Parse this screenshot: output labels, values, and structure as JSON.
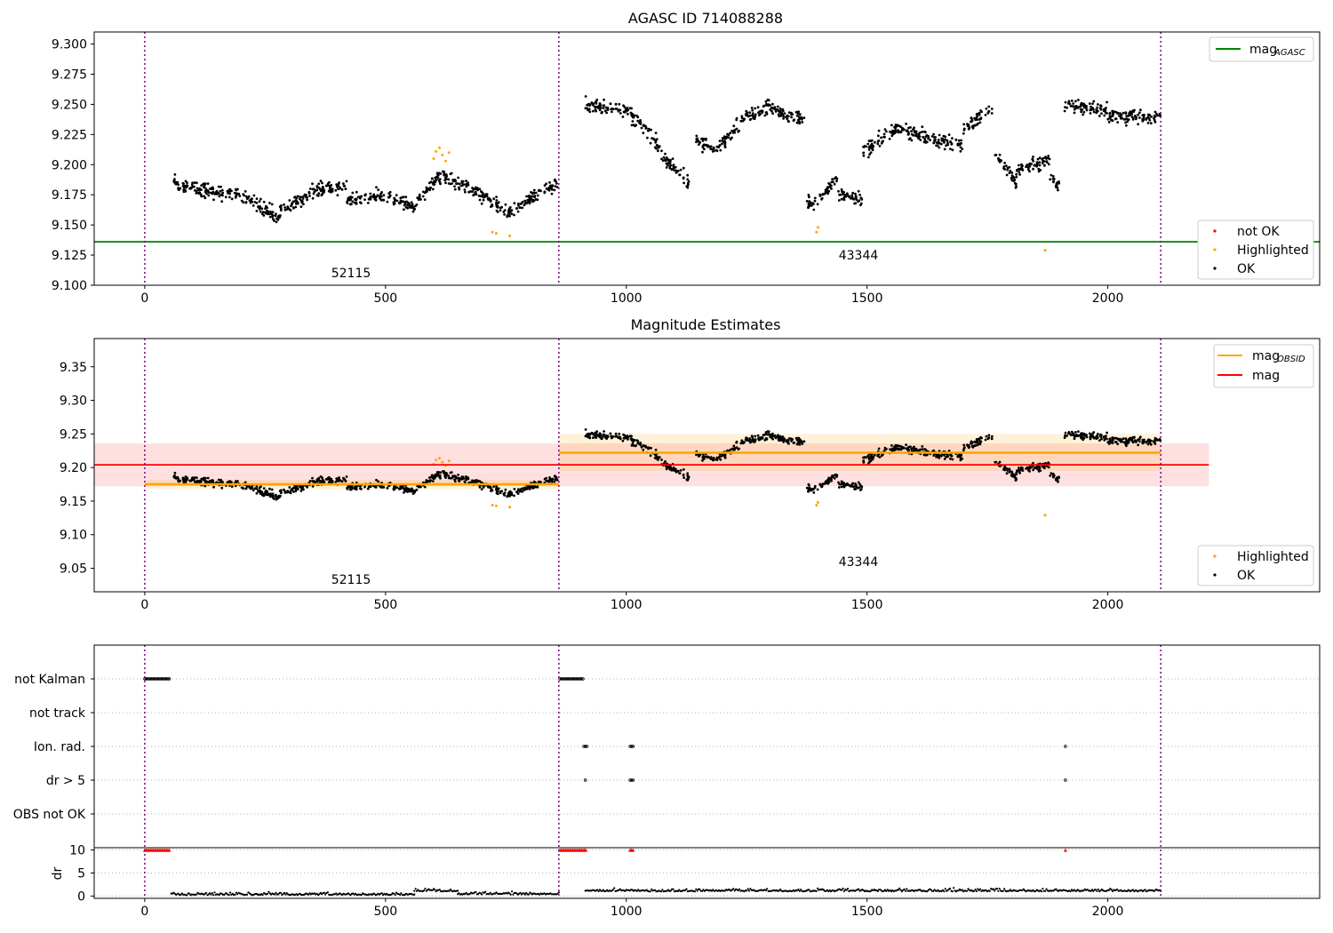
{
  "chart_data": [
    {
      "type": "scatter",
      "title": "AGASC ID 714088288",
      "xlabel": "",
      "ylabel": "",
      "xlim": [
        -105,
        2440
      ],
      "ylim": [
        9.1,
        9.31
      ],
      "xticks": [
        0,
        500,
        1000,
        1500,
        2000
      ],
      "yticks": [
        9.1,
        9.125,
        9.15,
        9.175,
        9.2,
        9.225,
        9.25,
        9.275,
        9.3
      ],
      "grid": false,
      "vlines": [
        0,
        860,
        2110
      ],
      "hlines": [
        {
          "name": "mag_AGASC",
          "y": 9.136,
          "color": "#008000"
        }
      ],
      "annotations": [
        {
          "text": "52115",
          "x": 430,
          "y": 9.11
        },
        {
          "text": "43344",
          "x": 1480,
          "y": 9.125
        }
      ],
      "legends": [
        {
          "loc": "upper right",
          "entries": [
            {
              "label": "mag",
              "sub": "AGASC",
              "color": "#008000",
              "kind": "line"
            }
          ]
        },
        {
          "loc": "lower right",
          "entries": [
            {
              "label": "not OK",
              "color": "#ff0000",
              "kind": "dot"
            },
            {
              "label": "Highlighted",
              "color": "#ffa500",
              "kind": "dot"
            },
            {
              "label": "OK",
              "color": "#000000",
              "kind": "dot"
            }
          ]
        }
      ],
      "series": [
        {
          "name": "OK",
          "color": "#000000",
          "segments": [
            {
              "x": [
                60,
                110
              ],
              "y": [
                9.184,
                9.18
              ]
            },
            {
              "x": [
                110,
                200
              ],
              "y": [
                9.18,
                9.175
              ]
            },
            {
              "x": [
                200,
                270
              ],
              "y": [
                9.175,
                9.158
              ]
            },
            {
              "x": [
                270,
                360
              ],
              "y": [
                9.158,
                9.18
              ]
            },
            {
              "x": [
                360,
                420
              ],
              "y": [
                9.18,
                9.182
              ]
            },
            {
              "x": [
                420,
                500
              ],
              "y": [
                9.17,
                9.175
              ]
            },
            {
              "x": [
                500,
                560
              ],
              "y": [
                9.175,
                9.165
              ]
            },
            {
              "x": [
                560,
                610
              ],
              "y": [
                9.165,
                9.19
              ]
            },
            {
              "x": [
                610,
                650
              ],
              "y": [
                9.19,
                9.185
              ]
            },
            {
              "x": [
                650,
                700
              ],
              "y": [
                9.185,
                9.175
              ]
            },
            {
              "x": [
                700,
                760
              ],
              "y": [
                9.175,
                9.16
              ]
            },
            {
              "x": [
                760,
                800
              ],
              "y": [
                9.16,
                9.172
              ]
            },
            {
              "x": [
                800,
                860
              ],
              "y": [
                9.172,
                9.185
              ]
            },
            {
              "x": [
                915,
                1000
              ],
              "y": [
                9.25,
                9.245
              ]
            },
            {
              "x": [
                1000,
                1050
              ],
              "y": [
                9.245,
                9.225
              ]
            },
            {
              "x": [
                1050,
                1090
              ],
              "y": [
                9.225,
                9.2
              ]
            },
            {
              "x": [
                1090,
                1130
              ],
              "y": [
                9.2,
                9.185
              ]
            },
            {
              "x": [
                1145,
                1190
              ],
              "y": [
                9.22,
                9.212
              ]
            },
            {
              "x": [
                1190,
                1250
              ],
              "y": [
                9.215,
                9.24
              ]
            },
            {
              "x": [
                1250,
                1300
              ],
              "y": [
                9.24,
                9.25
              ]
            },
            {
              "x": [
                1300,
                1370
              ],
              "y": [
                9.245,
                9.238
              ]
            },
            {
              "x": [
                1375,
                1400
              ],
              "y": [
                9.17,
                9.165
              ]
            },
            {
              "x": [
                1400,
                1440
              ],
              "y": [
                9.17,
                9.19
              ]
            },
            {
              "x": [
                1440,
                1490
              ],
              "y": [
                9.175,
                9.17
              ]
            },
            {
              "x": [
                1490,
                1560
              ],
              "y": [
                9.21,
                9.23
              ]
            },
            {
              "x": [
                1560,
                1640
              ],
              "y": [
                9.23,
                9.22
              ]
            },
            {
              "x": [
                1640,
                1700
              ],
              "y": [
                9.22,
                9.218
              ]
            },
            {
              "x": [
                1700,
                1760
              ],
              "y": [
                9.23,
                9.245
              ]
            },
            {
              "x": [
                1765,
                1810
              ],
              "y": [
                9.21,
                9.185
              ]
            },
            {
              "x": [
                1810,
                1880
              ],
              "y": [
                9.195,
                9.205
              ]
            },
            {
              "x": [
                1880,
                1900
              ],
              "y": [
                9.19,
                9.18
              ]
            },
            {
              "x": [
                1910,
                2000
              ],
              "y": [
                9.25,
                9.245
              ]
            },
            {
              "x": [
                2000,
                2110
              ],
              "y": [
                9.24,
                9.24
              ]
            }
          ]
        },
        {
          "name": "Highlighted",
          "color": "#ffa500",
          "points": [
            {
              "x": 600,
              "y": 9.205
            },
            {
              "x": 605,
              "y": 9.211
            },
            {
              "x": 612,
              "y": 9.214
            },
            {
              "x": 618,
              "y": 9.208
            },
            {
              "x": 625,
              "y": 9.203
            },
            {
              "x": 632,
              "y": 9.21
            },
            {
              "x": 722,
              "y": 9.144
            },
            {
              "x": 730,
              "y": 9.143
            },
            {
              "x": 758,
              "y": 9.141
            },
            {
              "x": 1395,
              "y": 9.144
            },
            {
              "x": 1398,
              "y": 9.148
            },
            {
              "x": 1870,
              "y": 9.129
            }
          ]
        }
      ]
    },
    {
      "type": "scatter",
      "title": "Magnitude Estimates",
      "xlabel": "",
      "ylabel": "",
      "xlim": [
        -105,
        2440
      ],
      "ylim": [
        9.015,
        9.392
      ],
      "xticks": [
        0,
        500,
        1000,
        1500,
        2000
      ],
      "yticks": [
        9.05,
        9.1,
        9.15,
        9.2,
        9.25,
        9.3,
        9.35
      ],
      "grid": false,
      "vlines": [
        0,
        860,
        2110
      ],
      "hlines": [
        {
          "name": "mag",
          "y": 9.204,
          "xmin": -105,
          "xmax": 2210,
          "color": "#ff0000",
          "band": [
            9.172,
            9.236
          ]
        }
      ],
      "obsid_levels": [
        {
          "x": [
            0,
            860
          ],
          "y": 9.175,
          "band": [
            9.168,
            9.182
          ]
        },
        {
          "x": [
            860,
            2110
          ],
          "y": 9.222,
          "band": [
            9.195,
            9.25
          ]
        }
      ],
      "annotations": [
        {
          "text": "52115",
          "x": 430,
          "y": 9.03
        },
        {
          "text": "43344",
          "x": 1480,
          "y": 9.06
        }
      ],
      "legends": [
        {
          "loc": "upper right",
          "entries": [
            {
              "label": "mag",
              "sub": "OBSID",
              "color": "#ffa500",
              "kind": "line"
            },
            {
              "label": "mag",
              "sub": "",
              "color": "#ff0000",
              "kind": "line"
            }
          ]
        },
        {
          "loc": "lower right",
          "entries": [
            {
              "label": "Highlighted",
              "color": "#ffa500",
              "kind": "dot"
            },
            {
              "label": "OK",
              "color": "#000000",
              "kind": "dot"
            }
          ]
        }
      ]
    },
    {
      "type": "scatter",
      "title": "",
      "xlabel": "",
      "ylabel": "",
      "xlim": [
        -105,
        2440
      ],
      "xticks": [
        0,
        500,
        1000,
        1500,
        2000
      ],
      "vlines": [
        0,
        860,
        2110
      ],
      "flags": {
        "rows": [
          "not Kalman",
          "not track",
          "Ion. rad.",
          "dr > 5",
          "OBS not OK"
        ],
        "spans": [
          {
            "row": "not Kalman",
            "x": [
              0,
              52
            ]
          },
          {
            "row": "not Kalman",
            "x": [
              862,
              912
            ]
          },
          {
            "row": "Ion. rad.",
            "x": [
              912,
              918
            ]
          },
          {
            "row": "Ion. rad.",
            "x": [
              1008,
              1016
            ]
          },
          {
            "row": "Ion. rad.",
            "x": [
              1912,
              1914
            ]
          },
          {
            "row": "dr > 5",
            "x": [
              915,
              917
            ]
          },
          {
            "row": "dr > 5",
            "x": [
              1008,
              1016
            ]
          },
          {
            "row": "dr > 5",
            "x": [
              1912,
              1914
            ]
          }
        ]
      },
      "dr": {
        "ylabel": "dr",
        "ylim": [
          -0.5,
          10.5
        ],
        "yticks": [
          0,
          5,
          10
        ],
        "clipped_at_10": [
          {
            "x": [
              0,
              52
            ]
          },
          {
            "x": [
              862,
              918
            ]
          },
          {
            "x": [
              1008,
              1016
            ]
          },
          {
            "x": [
              1912,
              1914
            ]
          }
        ],
        "segments": [
          {
            "x": [
              55,
              560
            ],
            "y": 0.4
          },
          {
            "x": [
              560,
              650
            ],
            "y": 1.2
          },
          {
            "x": [
              650,
              860
            ],
            "y": 0.5
          },
          {
            "x": [
              915,
              2110
            ],
            "y": 1.2
          }
        ]
      }
    }
  ]
}
